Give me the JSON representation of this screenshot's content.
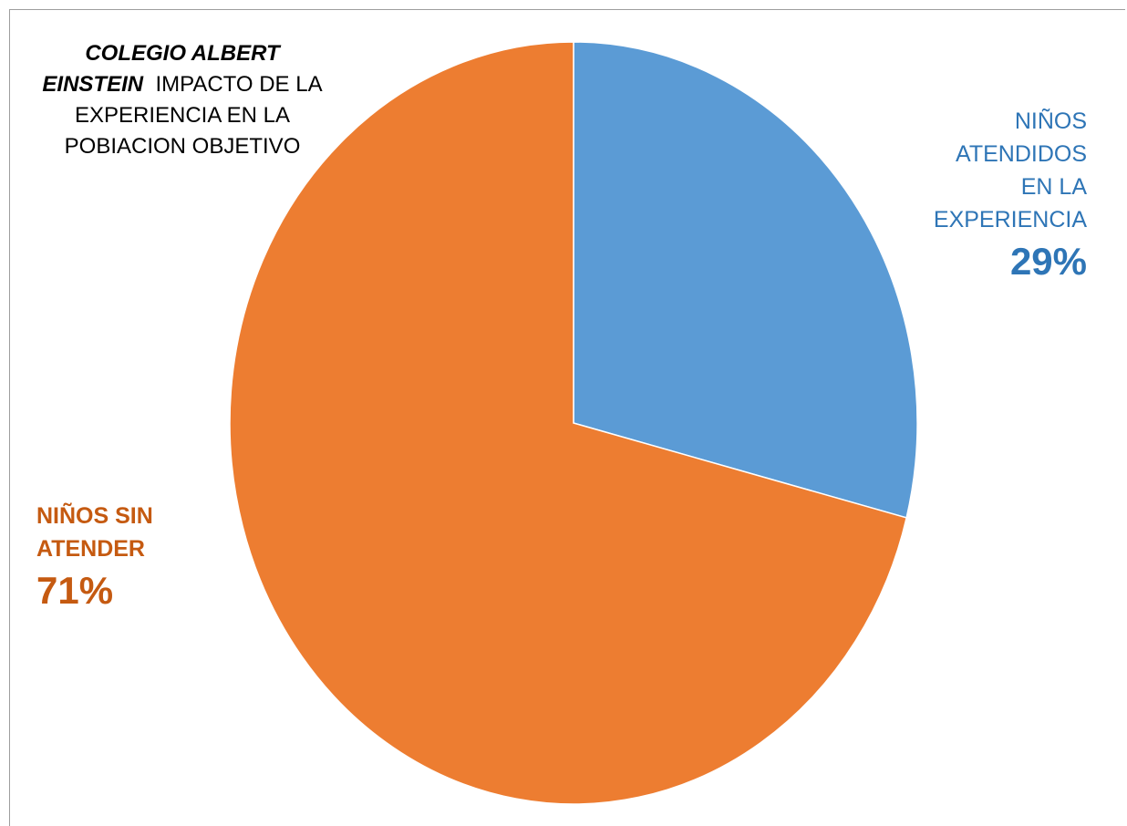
{
  "chart_data": {
    "type": "pie",
    "title": {
      "line1_bold_italic": "COLEGIO ALBERT",
      "line2_bold_italic": "EINSTEIN",
      "rest_text": "IMPACTO DE LA EXPERIENCIA  EN LA POBIACION OBJETIVO"
    },
    "slices": [
      {
        "label_lines": [
          "NIÑOS",
          "ATENDIDOS",
          "EN LA",
          "EXPERIENCIA"
        ],
        "value": 29,
        "value_label": "29%",
        "color": "#5b9bd5",
        "text_color": "#2e75b6"
      },
      {
        "label_lines": [
          "NIÑOS SIN",
          "ATENDER"
        ],
        "value": 71,
        "value_label": "71%",
        "color": "#ed7d31",
        "text_color": "#c55a11"
      }
    ]
  }
}
